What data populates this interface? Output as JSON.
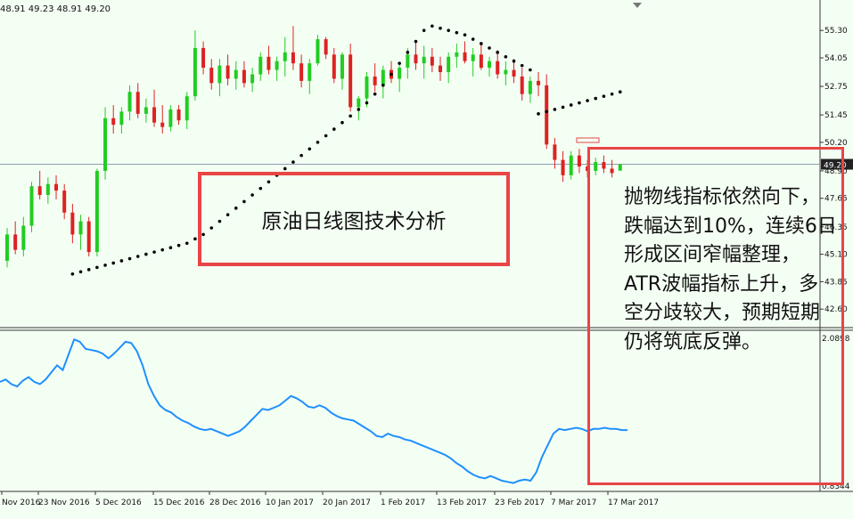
{
  "header": {
    "ohlc_text": "48.91 49.23 48.91 49.20"
  },
  "annotations": {
    "title": "原油日线图技术分析",
    "lines": [
      "抛物线指标依然向下，跌幅达到10%，连续6日形成区间窄幅整理，",
      "ATR波幅指标上升，多空分歧较大，预期短期仍将筑底反弹。"
    ]
  },
  "chart_data": [
    {
      "type": "candlestick",
      "title": "",
      "price_ticks": [
        "55.30",
        "54.05",
        "52.75",
        "51.45",
        "50.20",
        "48.90",
        "47.65",
        "46.35",
        "45.10",
        "43.85",
        "42.60"
      ],
      "current_price": "49.20",
      "current_price_value": 49.2,
      "ylim": [
        42.0,
        56.2
      ],
      "colors": {
        "up": "#22cc22",
        "down": "#dd2222",
        "sar": "#000000",
        "atr": "#1e90ff",
        "price_line": "#8aa0b0"
      },
      "candles": [
        [
          44.8,
          46.3,
          44.5,
          46.0
        ],
        [
          46.0,
          46.6,
          45.1,
          45.3
        ],
        [
          45.3,
          46.8,
          45.0,
          46.4
        ],
        [
          46.4,
          48.4,
          46.1,
          48.2
        ],
        [
          48.2,
          48.9,
          47.6,
          47.8
        ],
        [
          47.8,
          48.6,
          47.4,
          48.3
        ],
        [
          48.3,
          48.7,
          47.6,
          48.0
        ],
        [
          48.0,
          48.3,
          46.7,
          47.0
        ],
        [
          47.0,
          47.4,
          45.6,
          46.0
        ],
        [
          46.0,
          46.9,
          45.3,
          46.6
        ],
        [
          46.6,
          46.8,
          45.0,
          45.2
        ],
        [
          45.2,
          49.0,
          45.0,
          48.9
        ],
        [
          48.9,
          51.8,
          48.5,
          51.3
        ],
        [
          51.3,
          51.9,
          50.6,
          51.0
        ],
        [
          51.0,
          51.8,
          50.6,
          51.6
        ],
        [
          51.6,
          52.8,
          51.2,
          52.5
        ],
        [
          52.5,
          52.9,
          51.3,
          51.5
        ],
        [
          51.5,
          52.2,
          51.1,
          51.8
        ],
        [
          51.8,
          52.6,
          50.9,
          51.1
        ],
        [
          51.1,
          51.9,
          50.6,
          50.9
        ],
        [
          50.9,
          51.9,
          50.7,
          51.7
        ],
        [
          51.7,
          51.9,
          51.0,
          51.2
        ],
        [
          51.2,
          52.5,
          50.8,
          52.3
        ],
        [
          52.3,
          55.3,
          52.1,
          54.5
        ],
        [
          54.5,
          54.8,
          53.3,
          53.6
        ],
        [
          53.6,
          54.0,
          52.6,
          52.9
        ],
        [
          52.9,
          54.0,
          52.3,
          53.7
        ],
        [
          53.7,
          54.2,
          52.8,
          53.1
        ],
        [
          53.1,
          53.9,
          52.6,
          53.5
        ],
        [
          53.5,
          53.9,
          52.7,
          52.9
        ],
        [
          52.9,
          53.6,
          52.5,
          53.3
        ],
        [
          53.3,
          54.3,
          53.0,
          54.1
        ],
        [
          54.1,
          54.6,
          53.3,
          53.5
        ],
        [
          53.5,
          54.1,
          53.0,
          53.9
        ],
        [
          53.9,
          55.0,
          53.2,
          54.3
        ],
        [
          54.3,
          55.5,
          53.5,
          53.8
        ],
        [
          53.8,
          54.2,
          52.7,
          53.0
        ],
        [
          53.0,
          54.0,
          52.4,
          53.8
        ],
        [
          53.8,
          55.1,
          53.7,
          54.9
        ],
        [
          54.9,
          55.0,
          54.0,
          54.2
        ],
        [
          54.2,
          54.5,
          52.9,
          53.1
        ],
        [
          53.1,
          54.3,
          52.6,
          54.2
        ],
        [
          54.2,
          54.7,
          51.6,
          51.8
        ],
        [
          51.8,
          52.3,
          51.2,
          52.2
        ],
        [
          52.2,
          53.4,
          51.8,
          53.2
        ],
        [
          53.2,
          53.8,
          52.5,
          52.8
        ],
        [
          52.8,
          53.7,
          52.2,
          53.5
        ],
        [
          53.5,
          53.9,
          52.9,
          53.1
        ],
        [
          53.1,
          53.8,
          52.5,
          53.6
        ],
        [
          53.6,
          54.5,
          53.1,
          54.2
        ],
        [
          54.2,
          54.8,
          53.5,
          53.8
        ],
        [
          53.8,
          54.6,
          53.1,
          54.1
        ],
        [
          54.1,
          54.5,
          53.4,
          53.7
        ],
        [
          53.7,
          54.1,
          53.0,
          53.4
        ],
        [
          53.4,
          54.3,
          52.9,
          54.1
        ],
        [
          54.1,
          54.7,
          53.6,
          54.3
        ],
        [
          54.3,
          54.8,
          53.8,
          53.9
        ],
        [
          53.9,
          54.5,
          53.2,
          54.2
        ],
        [
          54.2,
          54.7,
          53.5,
          53.6
        ],
        [
          53.6,
          54.1,
          53.2,
          53.9
        ],
        [
          53.9,
          54.4,
          53.1,
          53.3
        ],
        [
          53.3,
          53.9,
          52.8,
          53.5
        ],
        [
          53.5,
          54.0,
          52.9,
          53.2
        ],
        [
          53.2,
          53.6,
          52.1,
          52.4
        ],
        [
          52.4,
          53.2,
          52.0,
          53.0
        ],
        [
          53.0,
          53.4,
          52.3,
          52.8
        ],
        [
          52.8,
          53.3,
          49.9,
          50.1
        ],
        [
          50.1,
          50.4,
          49.0,
          49.4
        ],
        [
          49.4,
          49.8,
          48.4,
          48.7
        ],
        [
          48.7,
          49.8,
          48.5,
          49.6
        ],
        [
          49.6,
          49.9,
          48.8,
          49.1
        ],
        [
          49.1,
          49.4,
          48.6,
          48.9
        ],
        [
          48.9,
          49.5,
          48.7,
          49.3
        ],
        [
          49.3,
          49.6,
          48.8,
          49.0
        ],
        [
          49.0,
          49.4,
          48.6,
          48.8
        ],
        [
          48.91,
          49.23,
          48.91,
          49.2
        ]
      ],
      "sar": [
        null,
        null,
        null,
        null,
        null,
        null,
        null,
        null,
        44.2,
        44.3,
        44.4,
        44.5,
        44.6,
        44.7,
        44.8,
        44.9,
        45.0,
        45.1,
        45.2,
        45.3,
        45.4,
        45.5,
        45.6,
        45.8,
        46.0,
        46.3,
        46.6,
        46.9,
        47.2,
        47.5,
        47.8,
        48.1,
        48.4,
        48.7,
        49.0,
        49.3,
        49.6,
        49.9,
        50.2,
        50.5,
        50.8,
        51.1,
        51.4,
        51.7,
        52.0,
        52.4,
        52.8,
        53.3,
        53.8,
        54.3,
        54.8,
        55.3,
        55.5,
        55.4,
        55.3,
        55.2,
        55.1,
        54.9,
        54.7,
        54.5,
        54.3,
        54.1,
        53.9,
        53.7,
        53.5,
        51.5,
        51.6,
        51.7,
        51.8,
        51.9,
        52.0,
        52.1,
        52.2,
        52.3,
        52.4,
        52.5
      ],
      "x_tick_labels": [
        "Nov 2016",
        "23 Nov 2016",
        "5 Dec 2016",
        "15 Dec 2016",
        "28 Dec 2016",
        "10 Jan 2017",
        "20 Jan 2017",
        "1 Feb 2017",
        "13 Feb 2017",
        "23 Feb 2017",
        "7 Mar 2017",
        "17 Mar 2017"
      ]
    },
    {
      "type": "line",
      "title": "",
      "y_ticks": [
        "2.0898",
        "0.8344"
      ],
      "ylim": [
        0.8344,
        2.0898
      ],
      "values": [
        1.72,
        1.74,
        1.7,
        1.68,
        1.73,
        1.76,
        1.72,
        1.7,
        1.74,
        1.8,
        1.86,
        1.82,
        1.95,
        2.08,
        2.06,
        2.0,
        1.99,
        1.98,
        1.96,
        1.92,
        1.96,
        2.01,
        2.06,
        2.05,
        1.98,
        1.86,
        1.7,
        1.6,
        1.52,
        1.48,
        1.46,
        1.42,
        1.39,
        1.37,
        1.34,
        1.32,
        1.31,
        1.32,
        1.3,
        1.28,
        1.26,
        1.28,
        1.3,
        1.34,
        1.39,
        1.44,
        1.49,
        1.48,
        1.5,
        1.52,
        1.56,
        1.6,
        1.58,
        1.55,
        1.51,
        1.5,
        1.52,
        1.5,
        1.46,
        1.43,
        1.41,
        1.4,
        1.39,
        1.36,
        1.33,
        1.3,
        1.26,
        1.25,
        1.28,
        1.26,
        1.25,
        1.23,
        1.22,
        1.2,
        1.18,
        1.16,
        1.14,
        1.12,
        1.1,
        1.07,
        1.03,
        1.0,
        0.96,
        0.93,
        0.91,
        0.9,
        0.92,
        0.9,
        0.88,
        0.87,
        0.86,
        0.88,
        0.89,
        0.88,
        0.95,
        1.08,
        1.18,
        1.28,
        1.32,
        1.31,
        1.32,
        1.33,
        1.32,
        1.3,
        1.32,
        1.32,
        1.33,
        1.32,
        1.32,
        1.31,
        1.31
      ]
    }
  ]
}
